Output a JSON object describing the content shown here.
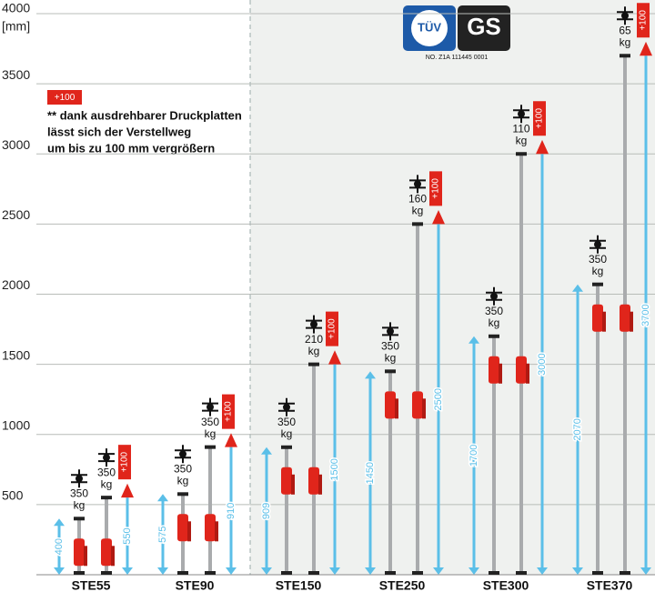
{
  "chart_data": {
    "type": "prop-range",
    "y_unit": "[mm]",
    "ylim": [
      0,
      4000
    ],
    "yticks": [
      500,
      1000,
      1500,
      2000,
      2500,
      3000,
      3500,
      4000
    ],
    "categories": [
      "STE55",
      "STE90",
      "STE150",
      "STE250",
      "STE300",
      "STE370"
    ],
    "min_height": [
      400,
      575,
      909,
      1450,
      1700,
      2070
    ],
    "max_height": [
      550,
      910,
      1500,
      2500,
      3000,
      3700
    ],
    "min_load": [
      350,
      350,
      350,
      350,
      350,
      350
    ],
    "max_load": [
      350,
      350,
      210,
      160,
      110,
      65
    ],
    "load_unit": "kg",
    "extension": {
      "value": 100,
      "label": "+100"
    },
    "note": [
      "** dank ausdrehbarer Druckplatten",
      "lässt sich der Verstellweg",
      "um bis zu 100 mm vergrößern"
    ],
    "logo": {
      "tuv": "TÜV",
      "gs": "GS",
      "certificate": "NO. Z1A 111445 0001"
    },
    "arrow_color": "#5bbfe8",
    "accent_color": "#e0251b",
    "grid": true
  }
}
